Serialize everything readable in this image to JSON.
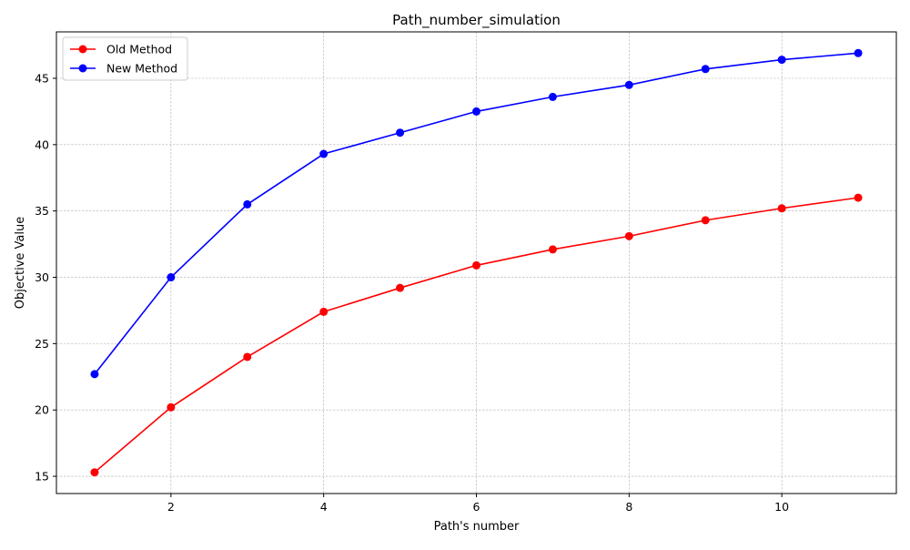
{
  "chart_data": {
    "type": "line",
    "title": "Path_number_simulation",
    "xlabel": "Path's number",
    "ylabel": "Objective Value",
    "x": [
      1,
      2,
      3,
      4,
      5,
      6,
      7,
      8,
      9,
      10,
      11
    ],
    "xlim": [
      0.5,
      11.5
    ],
    "ylim": [
      13.7,
      48.5
    ],
    "xticks": [
      2,
      4,
      6,
      8,
      10
    ],
    "yticks": [
      15,
      20,
      25,
      30,
      35,
      40,
      45
    ],
    "xtick_labels": [
      "2",
      "4",
      "6",
      "8",
      "10"
    ],
    "ytick_labels": [
      "15",
      "20",
      "25",
      "30",
      "35",
      "40",
      "45"
    ],
    "grid": true,
    "legend_position": "top-left",
    "series": [
      {
        "name": "Old Method",
        "color": "#ff0000",
        "marker": "circle",
        "values": [
          15.3,
          20.2,
          24.0,
          27.4,
          29.2,
          30.9,
          32.1,
          33.1,
          34.3,
          35.2,
          36.0
        ]
      },
      {
        "name": "New Method",
        "color": "#0000ff",
        "marker": "circle",
        "values": [
          22.7,
          30.0,
          35.5,
          39.3,
          40.9,
          42.5,
          43.6,
          44.5,
          45.7,
          46.4,
          46.9
        ]
      }
    ]
  }
}
